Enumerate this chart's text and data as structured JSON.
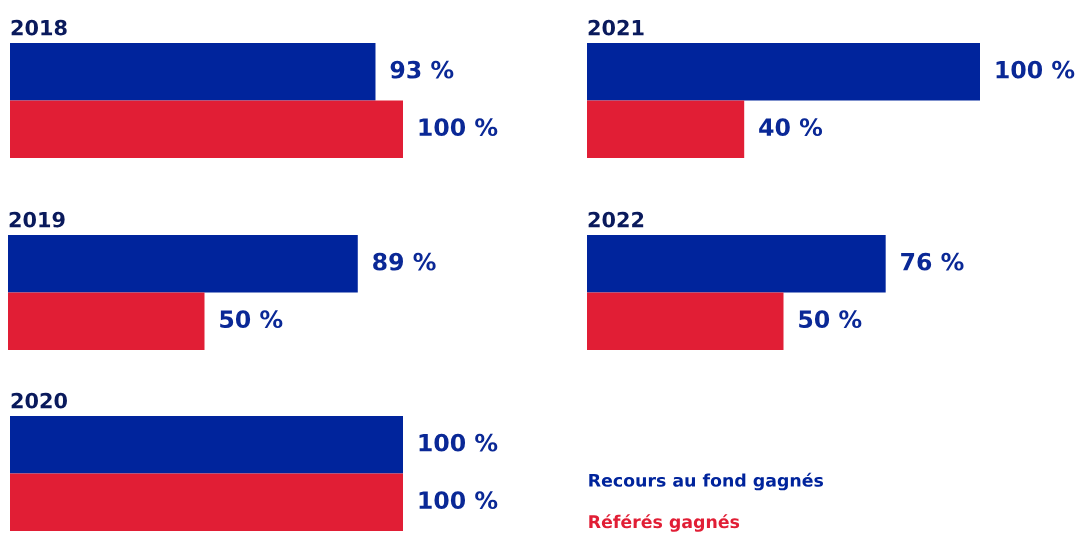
{
  "chart_data": [
    {
      "type": "bar",
      "orientation": "horizontal",
      "title": "2018",
      "categories": [
        null
      ],
      "tick_labels": false,
      "series": [
        {
          "color": "#00249c",
          "values": [
            93
          ],
          "value_labels": [
            "93 %"
          ]
        },
        {
          "color": "#e11e35",
          "values": [
            100
          ],
          "value_labels": [
            "100 %"
          ]
        }
      ]
    },
    {
      "type": "bar",
      "orientation": "horizontal",
      "title": "2021",
      "categories": [
        null
      ],
      "tick_labels": false,
      "series": [
        {
          "color": "#00249c",
          "values": [
            100
          ],
          "value_labels": [
            "100 %"
          ]
        },
        {
          "color": "#e11e35",
          "values": [
            40
          ],
          "value_labels": [
            "40 %"
          ]
        }
      ]
    },
    {
      "type": "bar",
      "orientation": "horizontal",
      "title": "2019",
      "categories": [
        null
      ],
      "tick_labels": false,
      "series": [
        {
          "color": "#00249c",
          "values": [
            89
          ],
          "value_labels": [
            "89 %"
          ]
        },
        {
          "color": "#e11e35",
          "values": [
            50
          ],
          "value_labels": [
            "50 %"
          ]
        }
      ]
    },
    {
      "type": "bar",
      "orientation": "horizontal",
      "title": "2022",
      "categories": [
        null
      ],
      "tick_labels": false,
      "series": [
        {
          "color": "#00249c",
          "values": [
            76
          ],
          "value_labels": [
            "76 %"
          ]
        },
        {
          "color": "#e11e35",
          "values": [
            50
          ],
          "value_labels": [
            "50 %"
          ]
        }
      ]
    },
    {
      "type": "bar",
      "orientation": "horizontal",
      "title": "2020",
      "categories": [
        null
      ],
      "tick_labels": false,
      "legend": "right",
      "series": [
        {
          "name": "Recours au fond gagnés",
          "color": "#00249c",
          "values": [
            100
          ],
          "value_labels": [
            "100 %"
          ]
        },
        {
          "name": "Référés gagnés",
          "color": "#e11e35",
          "values": [
            100
          ],
          "value_labels": [
            "100 %"
          ]
        }
      ]
    }
  ]
}
